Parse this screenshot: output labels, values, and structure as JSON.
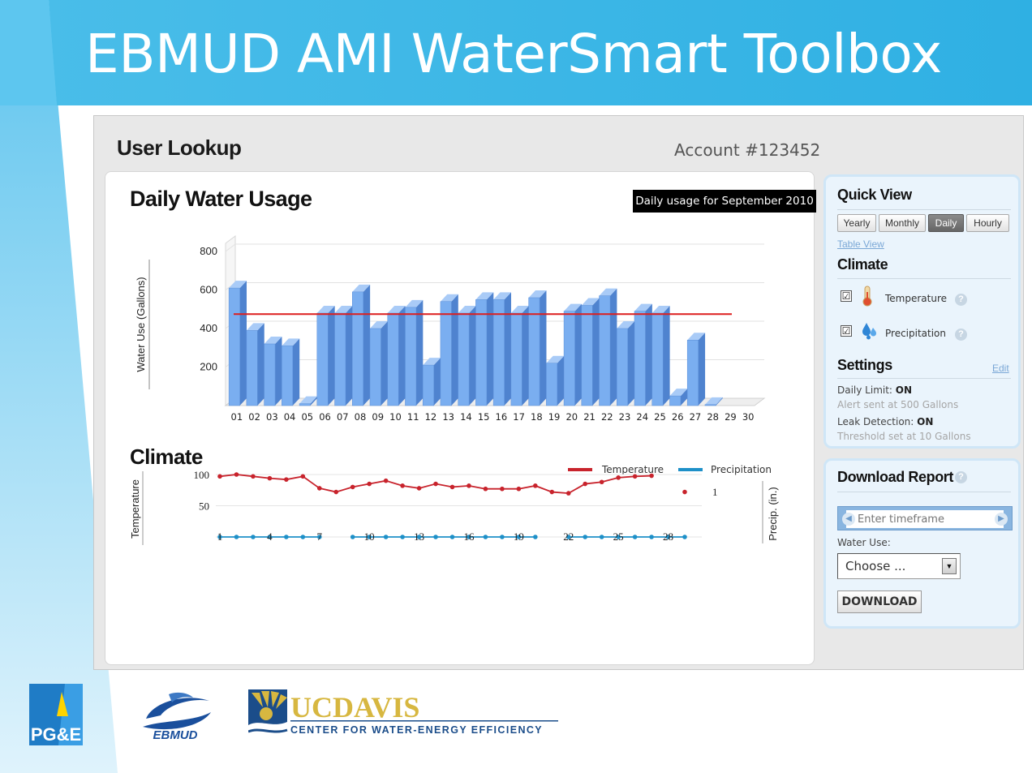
{
  "slide": {
    "title": "EBMUD AMI WaterSmart Toolbox",
    "colors": {
      "title_bar": "#3ab3e2",
      "panel_accent": "#cfe6f7",
      "bar": "#7aaef0",
      "limit_line": "#dd1e1e",
      "temperature": "#c8232c",
      "precipitation": "#1e90c8"
    }
  },
  "header": {
    "title": "User Lookup",
    "account": "Account #123452"
  },
  "usage": {
    "title": "Daily Water Usage",
    "badge": "Daily usage for September 2010",
    "chart_data": {
      "type": "bar",
      "ylabel": "Water Use (Gallons)",
      "ylim": [
        0,
        800
      ],
      "yticks": [
        200,
        400,
        600,
        800
      ],
      "categories": [
        "01",
        "02",
        "03",
        "04",
        "05",
        "06",
        "07",
        "08",
        "09",
        "10",
        "11",
        "12",
        "13",
        "14",
        "15",
        "16",
        "17",
        "18",
        "19",
        "20",
        "21",
        "22",
        "23",
        "24",
        "25",
        "26",
        "27",
        "28",
        "29",
        "30"
      ],
      "values": [
        610,
        390,
        320,
        310,
        10,
        480,
        480,
        590,
        400,
        480,
        510,
        210,
        540,
        480,
        550,
        550,
        480,
        560,
        220,
        490,
        520,
        570,
        400,
        490,
        480,
        50,
        340,
        5,
        null,
        null
      ],
      "limit": 500
    }
  },
  "climate": {
    "title": "Climate",
    "legend": [
      "Temperature",
      "Precipitation"
    ],
    "chart_data": {
      "type": "line",
      "ylabel_left": "Temperature",
      "ylabel_right": "Precip. (in.)",
      "ylim": [
        0,
        100
      ],
      "yticks": [
        50,
        100
      ],
      "right_tick": "1",
      "xticks": [
        "1",
        "4",
        "7",
        "10",
        "13",
        "16",
        "19",
        "22",
        "25",
        "28"
      ],
      "series": [
        {
          "name": "Temperature",
          "x": [
            1,
            2,
            3,
            4,
            5,
            6,
            7,
            8,
            9,
            10,
            11,
            12,
            13,
            14,
            15,
            16,
            17,
            18,
            19,
            20,
            21,
            22,
            23,
            24,
            25,
            26,
            27,
            28,
            29
          ],
          "values": [
            97,
            100,
            97,
            94,
            92,
            97,
            78,
            72,
            80,
            85,
            90,
            82,
            78,
            85,
            80,
            82,
            77,
            77,
            77,
            82,
            72,
            70,
            85,
            88,
            95,
            97,
            98,
            null,
            72
          ]
        },
        {
          "name": "Precipitation",
          "x": [
            1,
            2,
            3,
            4,
            5,
            6,
            7,
            8,
            9,
            10,
            11,
            12,
            13,
            14,
            15,
            16,
            17,
            18,
            19,
            20,
            21,
            22,
            23,
            24,
            25,
            26,
            27,
            28,
            29
          ],
          "values": [
            0,
            0,
            0,
            0,
            0,
            0,
            0,
            null,
            0,
            0,
            0,
            0,
            0,
            0,
            0,
            0,
            0,
            0,
            0,
            0,
            null,
            0,
            0,
            0,
            0,
            0,
            0,
            0,
            0
          ]
        }
      ]
    }
  },
  "quickview": {
    "title": "Quick View",
    "segments": [
      "Yearly",
      "Monthly",
      "Daily",
      "Hourly"
    ],
    "active": "Daily",
    "table_link": "Table View",
    "climate_title": "Climate",
    "options": [
      {
        "label": "Temperature",
        "checked": "☑",
        "icon": "thermometer-icon"
      },
      {
        "label": "Precipitation",
        "checked": "☑",
        "icon": "raindrop-icon"
      }
    ],
    "settings_title": "Settings",
    "edit_link": "Edit",
    "daily_limit_label": "Daily Limit:",
    "daily_limit_value": "ON",
    "daily_limit_sub": "Alert sent at 500 Gallons",
    "leak_label": "Leak Detection:",
    "leak_value": "ON",
    "leak_sub": "Threshold set at 10 Gallons"
  },
  "download": {
    "title": "Download Report",
    "timeframe_placeholder": "Enter timeframe",
    "water_use_label": "Water Use:",
    "select_value": "Choose ...",
    "button": "DOWNLOAD"
  },
  "logos": {
    "pge": "PG&E",
    "ebmud": "EBMUD",
    "ucdavis": "UCDAVIS",
    "ucdavis_sub": "CENTER FOR WATER-ENERGY EFFICIENCY"
  }
}
